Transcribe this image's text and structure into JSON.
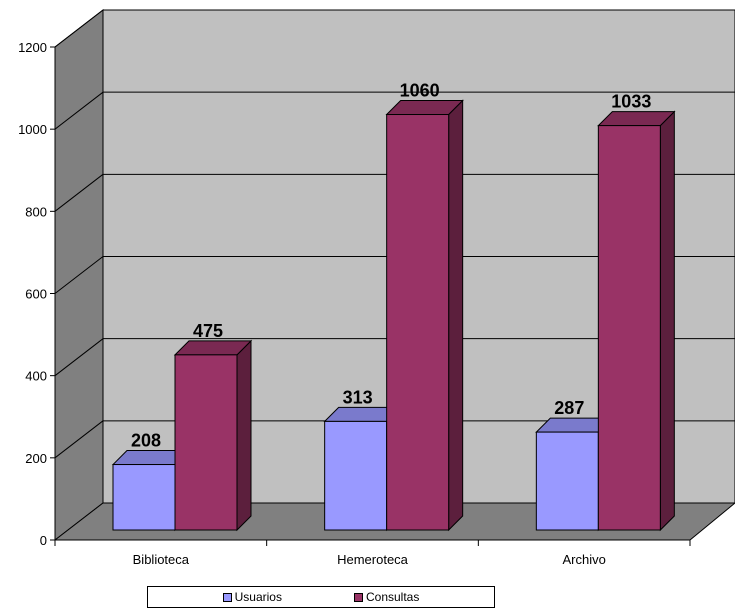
{
  "chart_data": {
    "type": "bar",
    "three_d": true,
    "categories": [
      "Biblioteca",
      "Hemeroteca",
      "Archivo"
    ],
    "series": [
      {
        "name": "Usuarios",
        "values": [
          208,
          313,
          287
        ],
        "color": "#9999FF"
      },
      {
        "name": "Consultas",
        "values": [
          475,
          1060,
          1033
        ],
        "color": "#993366"
      }
    ],
    "title": "",
    "xlabel": "",
    "ylabel": "",
    "ylim": [
      0,
      1200
    ],
    "yticks": [
      0,
      200,
      400,
      600,
      800,
      1000,
      1200
    ],
    "grid": true,
    "legend": "bottom",
    "wall_color": "#C0C0C0",
    "floor_color": "#808080",
    "side_wall_color": "#808080"
  }
}
